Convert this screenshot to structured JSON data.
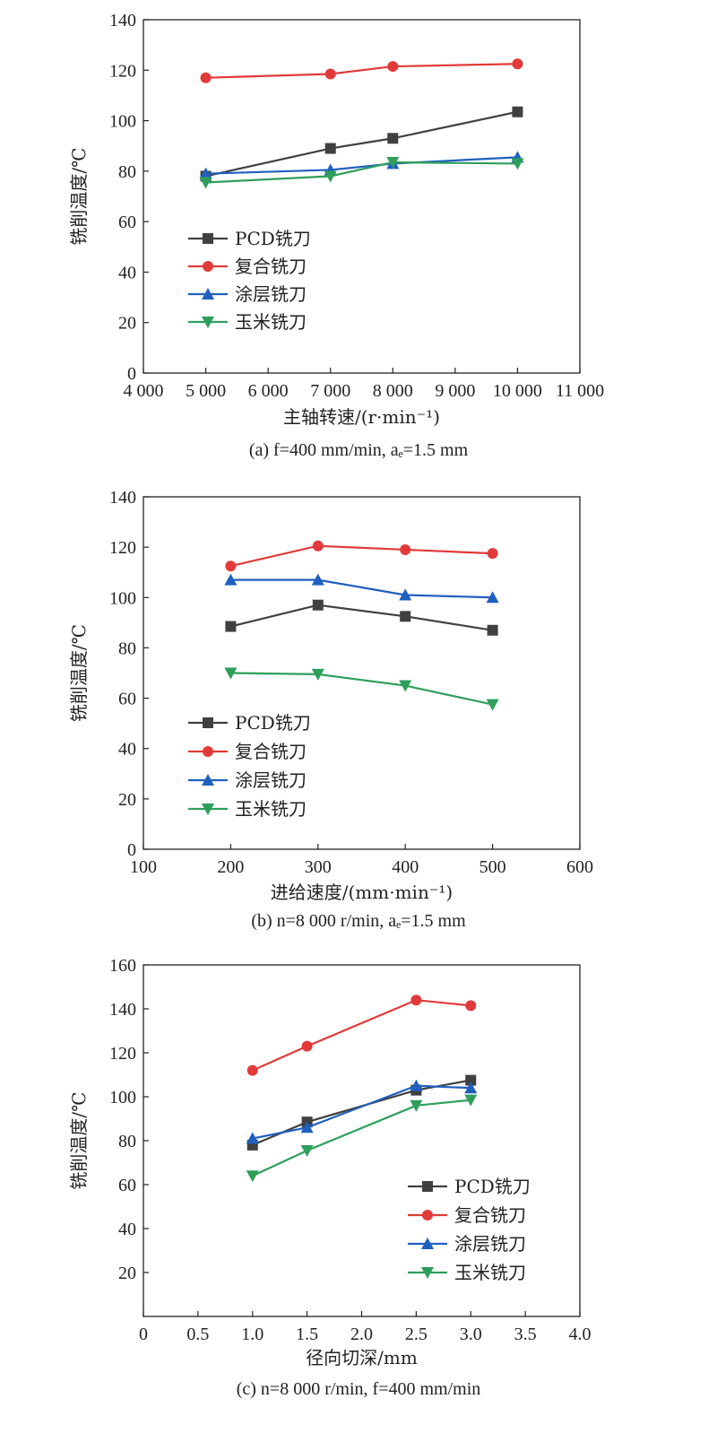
{
  "colors": {
    "PCD": "#404040",
    "composite": "#e23a3a",
    "coated": "#1f5fbf",
    "corn": "#2e9e5b"
  },
  "chart_data": [
    {
      "type": "line",
      "ylabel": "铣削温度/℃",
      "xlabel": "主轴转速/(r·min⁻¹)",
      "caption": "(a) f=400 mm/min, aₑ=1.5 mm",
      "xlim": [
        4000,
        11000
      ],
      "ylim": [
        0,
        140
      ],
      "xticks": [
        "4 000",
        "5 000",
        "6 000",
        "7 000",
        "8 000",
        "9 000",
        "10 000",
        "11 000"
      ],
      "yticks": [
        "0",
        "20",
        "40",
        "60",
        "80",
        "100",
        "120",
        "140"
      ],
      "legend_position": "lower-left",
      "x": [
        5000,
        7000,
        8000,
        10000
      ],
      "series": [
        {
          "name": "PCD铣刀",
          "marker": "square",
          "values": [
            78,
            89,
            93,
            103.5
          ]
        },
        {
          "name": "复合铣刀",
          "marker": "circle",
          "values": [
            117,
            118.5,
            121.5,
            122.5
          ]
        },
        {
          "name": "涂层铣刀",
          "marker": "triangle-up",
          "values": [
            79,
            80.5,
            83,
            85.5
          ]
        },
        {
          "name": "玉米铣刀",
          "marker": "triangle-down",
          "values": [
            75.5,
            78,
            83.5,
            83
          ]
        }
      ]
    },
    {
      "type": "line",
      "ylabel": "铣削温度/℃",
      "xlabel": "进给速度/(mm·min⁻¹)",
      "caption": "(b) n=8 000 r/min, aₑ=1.5 mm",
      "xlim": [
        100,
        600
      ],
      "ylim": [
        0,
        140
      ],
      "xticks": [
        "100",
        "200",
        "300",
        "400",
        "500",
        "600"
      ],
      "yticks": [
        "0",
        "20",
        "40",
        "60",
        "80",
        "100",
        "120",
        "140"
      ],
      "legend_position": "lower-left",
      "x": [
        200,
        300,
        400,
        500
      ],
      "series": [
        {
          "name": "PCD铣刀",
          "marker": "square",
          "values": [
            88.5,
            97,
            92.5,
            87
          ]
        },
        {
          "name": "复合铣刀",
          "marker": "circle",
          "values": [
            112.5,
            120.5,
            119,
            117.5
          ]
        },
        {
          "name": "涂层铣刀",
          "marker": "triangle-up",
          "values": [
            107,
            107,
            101,
            100
          ]
        },
        {
          "name": "玉米铣刀",
          "marker": "triangle-down",
          "values": [
            70,
            69.5,
            65,
            57.5
          ]
        }
      ]
    },
    {
      "type": "line",
      "ylabel": "铣削温度/℃",
      "xlabel": "径向切深/mm",
      "caption": "(c) n=8 000 r/min, f=400 mm/min",
      "xlim": [
        0,
        4.0
      ],
      "ylim": [
        0,
        160
      ],
      "xticks": [
        "0",
        "0.5",
        "1.0",
        "1.5",
        "2.0",
        "2.5",
        "3.0",
        "3.5",
        "4.0"
      ],
      "yticks": [
        "20",
        "40",
        "60",
        "80",
        "100",
        "120",
        "140",
        "160"
      ],
      "legend_position": "lower-right",
      "x": [
        1.0,
        1.5,
        2.5,
        3.0
      ],
      "series": [
        {
          "name": "PCD铣刀",
          "marker": "square",
          "values": [
            78,
            88.5,
            103,
            107.5
          ]
        },
        {
          "name": "复合铣刀",
          "marker": "circle",
          "values": [
            112,
            123,
            144,
            141.5
          ]
        },
        {
          "name": "涂层铣刀",
          "marker": "triangle-up",
          "values": [
            81,
            86,
            105,
            104
          ]
        },
        {
          "name": "玉米铣刀",
          "marker": "triangle-down",
          "values": [
            64,
            75.5,
            96,
            98.5
          ]
        }
      ]
    }
  ]
}
